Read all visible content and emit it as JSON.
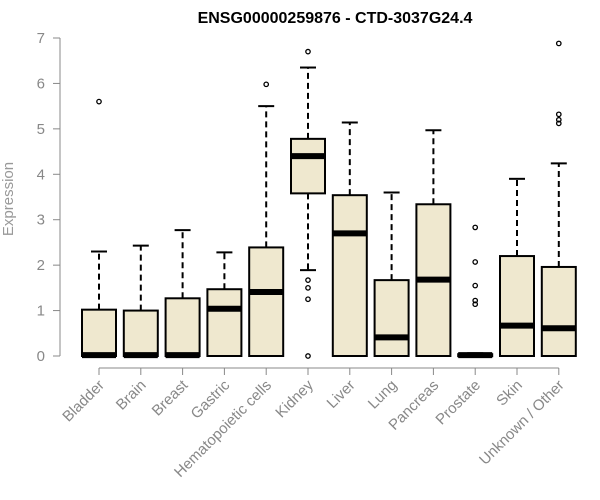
{
  "chart_data": {
    "type": "boxplot",
    "title": "ENSG00000259876 - CTD-3037G24.4",
    "ylabel": "Expression",
    "xlabel": "",
    "ylim": [
      0,
      7
    ],
    "yticks": [
      0,
      1,
      2,
      3,
      4,
      5,
      6,
      7
    ],
    "grid": false,
    "legend": "none",
    "colors": {
      "box_fill": "#efe8cf",
      "box_stroke": "#000000",
      "axis": "#888888"
    },
    "categories": [
      "Bladder",
      "Brain",
      "Breast",
      "Gastric",
      "Hematopoietic cells",
      "Kidney",
      "Liver",
      "Lung",
      "Pancreas",
      "Prostate",
      "Skin",
      "Unknown / Other"
    ],
    "boxes": [
      {
        "min": 0,
        "q1": 0,
        "median": 0.02,
        "q3": 1.02,
        "max": 2.3,
        "outliers": [
          5.6
        ]
      },
      {
        "min": 0,
        "q1": 0,
        "median": 0.02,
        "q3": 1.0,
        "max": 2.43,
        "outliers": []
      },
      {
        "min": 0,
        "q1": 0,
        "median": 0.02,
        "q3": 1.27,
        "max": 2.77,
        "outliers": []
      },
      {
        "min": 0,
        "q1": 0,
        "median": 1.04,
        "q3": 1.47,
        "max": 2.28,
        "outliers": []
      },
      {
        "min": 0,
        "q1": 0,
        "median": 1.41,
        "q3": 2.39,
        "max": 5.5,
        "outliers": [
          5.98
        ]
      },
      {
        "min": 1.89,
        "q1": 3.58,
        "median": 4.4,
        "q3": 4.78,
        "max": 6.35,
        "outliers": [
          6.7,
          1.67,
          1.5,
          1.25,
          0.0
        ]
      },
      {
        "min": 0,
        "q1": 0,
        "median": 2.7,
        "q3": 3.54,
        "max": 5.14,
        "outliers": []
      },
      {
        "min": 0,
        "q1": 0,
        "median": 0.41,
        "q3": 1.67,
        "max": 3.6,
        "outliers": []
      },
      {
        "min": 0,
        "q1": 0,
        "median": 1.68,
        "q3": 3.34,
        "max": 4.97,
        "outliers": []
      },
      {
        "min": 0,
        "q1": 0,
        "median": 0.02,
        "q3": 0.04,
        "max": 0.06,
        "outliers": [
          2.83,
          2.07,
          1.55,
          1.22,
          1.14
        ]
      },
      {
        "min": 0,
        "q1": 0,
        "median": 0.67,
        "q3": 2.2,
        "max": 3.9,
        "outliers": []
      },
      {
        "min": 0,
        "q1": 0,
        "median": 0.61,
        "q3": 1.96,
        "max": 4.24,
        "outliers": [
          6.88,
          5.32,
          5.2,
          5.12
        ]
      }
    ]
  }
}
